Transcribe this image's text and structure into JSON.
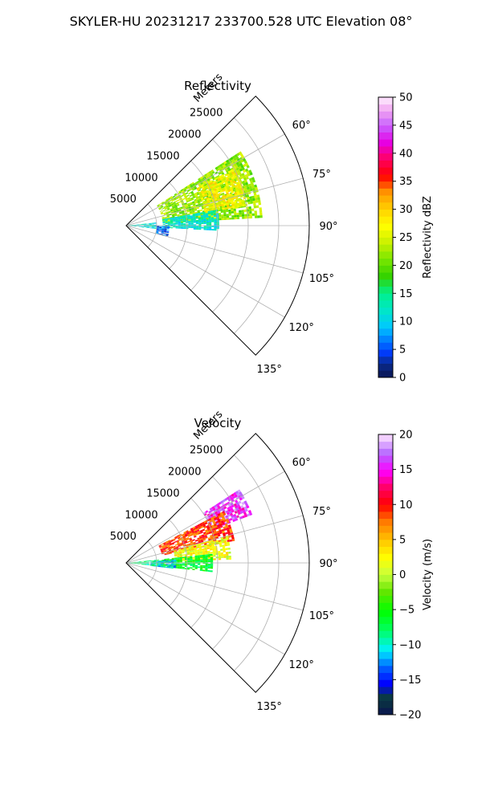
{
  "figure": {
    "suptitle": "SKYLER-HU  20231217  233700.528 UTC Elevation 08°"
  },
  "chart_data": [
    {
      "type": "heatmap",
      "subtype": "polar-sector (PPI)",
      "title": "Reflectivity",
      "radial_label": "Meters",
      "r_ticks": [
        5000,
        10000,
        15000,
        20000,
        25000
      ],
      "r_tick_labels": [
        "5000",
        "10000",
        "15000",
        "20000",
        "25000"
      ],
      "r_max": 30000,
      "theta_range_deg": [
        45,
        135
      ],
      "theta_ticks": [
        60,
        75,
        90,
        105,
        120,
        135
      ],
      "theta_tick_labels": [
        "60°",
        "75°",
        "90°",
        "105°",
        "120°",
        "135°"
      ],
      "grid": true,
      "colorbar": {
        "label": "Reflectivity dBZ",
        "range": [
          0,
          50
        ],
        "ticks": [
          0,
          5,
          10,
          15,
          20,
          25,
          30,
          35,
          40,
          45,
          50
        ],
        "tick_labels": [
          "0",
          "5",
          "10",
          "15",
          "20",
          "25",
          "30",
          "35",
          "40",
          "45",
          "50"
        ],
        "colormap": "NWS reflectivity (navy→blue→cyan→green→yellow→orange→red→magenta→white)"
      },
      "echo_regions": [
        {
          "theta": [
            57,
            86
          ],
          "r": [
            6000,
            22000
          ],
          "value": 22
        },
        {
          "theta": [
            62,
            80
          ],
          "r": [
            13000,
            20000
          ],
          "value": 27
        },
        {
          "theta": [
            80,
            93
          ],
          "r": [
            6000,
            15000
          ],
          "value": 12
        },
        {
          "theta": [
            84,
            96
          ],
          "r": [
            400,
            5000
          ],
          "value": 12
        },
        {
          "theta": [
            90,
            104
          ],
          "r": [
            5000,
            7000
          ],
          "value": 6
        }
      ]
    },
    {
      "type": "heatmap",
      "subtype": "polar-sector (PPI)",
      "title": "Velocity",
      "radial_label": "Meters",
      "r_ticks": [
        5000,
        10000,
        15000,
        20000,
        25000
      ],
      "r_tick_labels": [
        "5000",
        "10000",
        "15000",
        "20000",
        "25000"
      ],
      "r_max": 30000,
      "theta_range_deg": [
        45,
        135
      ],
      "theta_ticks": [
        60,
        75,
        90,
        105,
        120,
        135
      ],
      "theta_tick_labels": [
        "60°",
        "75°",
        "90°",
        "105°",
        "120°",
        "135°"
      ],
      "grid": true,
      "colorbar": {
        "label": "Velocity (m/s)",
        "range": [
          -20,
          20
        ],
        "ticks": [
          -20,
          -15,
          -10,
          -5,
          0,
          5,
          10,
          15,
          20
        ],
        "tick_labels": [
          "−20",
          "−15",
          "−10",
          "−5",
          "0",
          "5",
          "10",
          "15",
          "20"
        ],
        "colormap": "diverging (navy→blue→cyan→green→yellow→orange→red→magenta→white)"
      },
      "echo_regions": [
        {
          "theta": [
            57,
            68
          ],
          "r": [
            15000,
            22000
          ],
          "value": 16
        },
        {
          "theta": [
            62,
            78
          ],
          "r": [
            6000,
            18000
          ],
          "value": 9
        },
        {
          "theta": [
            75,
            88
          ],
          "r": [
            8000,
            17000
          ],
          "value": 2
        },
        {
          "theta": [
            84,
            95
          ],
          "r": [
            5000,
            14000
          ],
          "value": -6
        },
        {
          "theta": [
            86,
            96
          ],
          "r": [
            4000,
            8000
          ],
          "value": -11
        },
        {
          "theta": [
            84,
            96
          ],
          "r": [
            400,
            5000
          ],
          "value": -8
        }
      ]
    }
  ]
}
